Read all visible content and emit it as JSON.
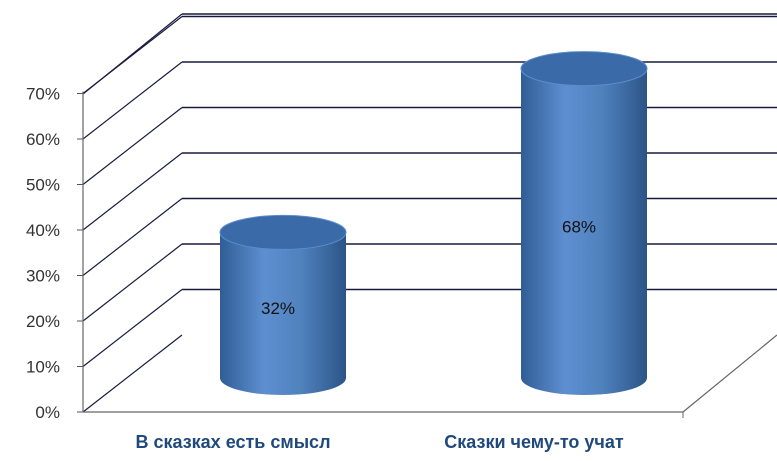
{
  "chart_data": {
    "type": "bar",
    "bar_shape": "cylinder-3d",
    "categories": [
      "В сказках есть смысл",
      "Сказки чему-то учат"
    ],
    "values": [
      32,
      68
    ],
    "data_labels": [
      "32%",
      "68%"
    ],
    "ylim": [
      0,
      70
    ],
    "yticks": [
      "0%",
      "10%",
      "20%",
      "30%",
      "40%",
      "50%",
      "60%",
      "70%"
    ],
    "grid": true,
    "legend": "none",
    "colors": {
      "bar": "#4f81bd",
      "bar_top": "#3a6aa8",
      "grid": "#1a1a40",
      "category_text": "#1f497d"
    }
  }
}
